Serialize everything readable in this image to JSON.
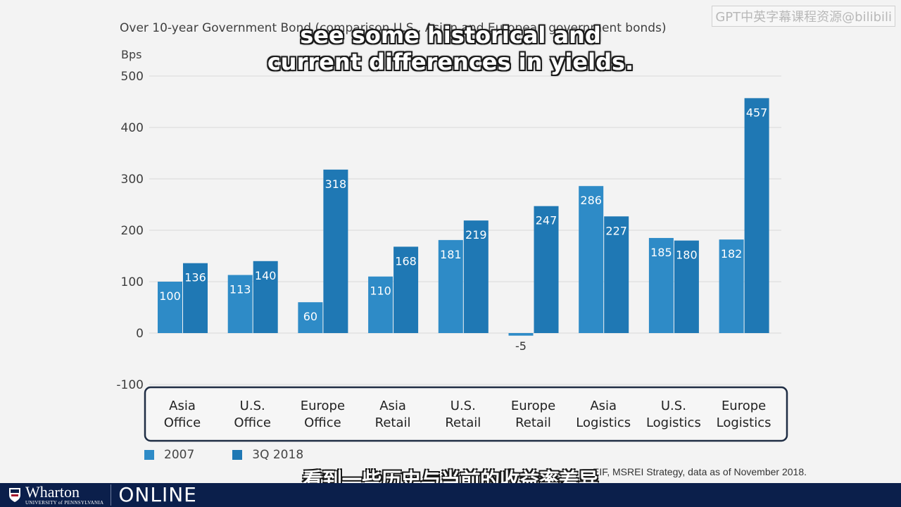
{
  "title": "Over 10-year Government Bond (comparison U.S., Asian and European government bonds)",
  "watermark": "GPT中英字幕课程资源@bilibili",
  "subtitles": {
    "en_line1": "see some historical and",
    "en_line2": "current differences in yields.",
    "zh": "看到一些历史与当前的收益率差异"
  },
  "source": "EIF, MSREI Strategy, data as of November 2018.",
  "footer": {
    "brand_name": "Wharton",
    "brand_sub": "UNIVERSITY of PENNSYLVANIA",
    "online": "ONLINE"
  },
  "colors": {
    "series_2007": "#2e8bc7",
    "series_2018": "#1f78b4",
    "grid": "#d9d9d9",
    "category_box": "#1f2d44",
    "footer": "#0b1f4b"
  },
  "chart_data": {
    "type": "bar",
    "ylabel": "Bps",
    "ylim": [
      -100,
      500
    ],
    "yticks": [
      "500",
      "400",
      "300",
      "200",
      "100",
      "0",
      "-100"
    ],
    "grid": true,
    "legend_position": "bottom-left",
    "categories": [
      [
        "Asia",
        "Office"
      ],
      [
        "U.S.",
        "Office"
      ],
      [
        "Europe",
        "Office"
      ],
      [
        "Asia",
        "Retail"
      ],
      [
        "U.S.",
        "Retail"
      ],
      [
        "Europe",
        "Retail"
      ],
      [
        "Asia",
        "Logistics"
      ],
      [
        "U.S.",
        "Logistics"
      ],
      [
        "Europe",
        "Logistics"
      ]
    ],
    "series": [
      {
        "name": "2007",
        "values": [
          100,
          113,
          60,
          110,
          181,
          -5,
          286,
          185,
          182
        ]
      },
      {
        "name": "3Q 2018",
        "values": [
          136,
          140,
          318,
          168,
          219,
          247,
          227,
          180,
          457
        ]
      }
    ]
  }
}
